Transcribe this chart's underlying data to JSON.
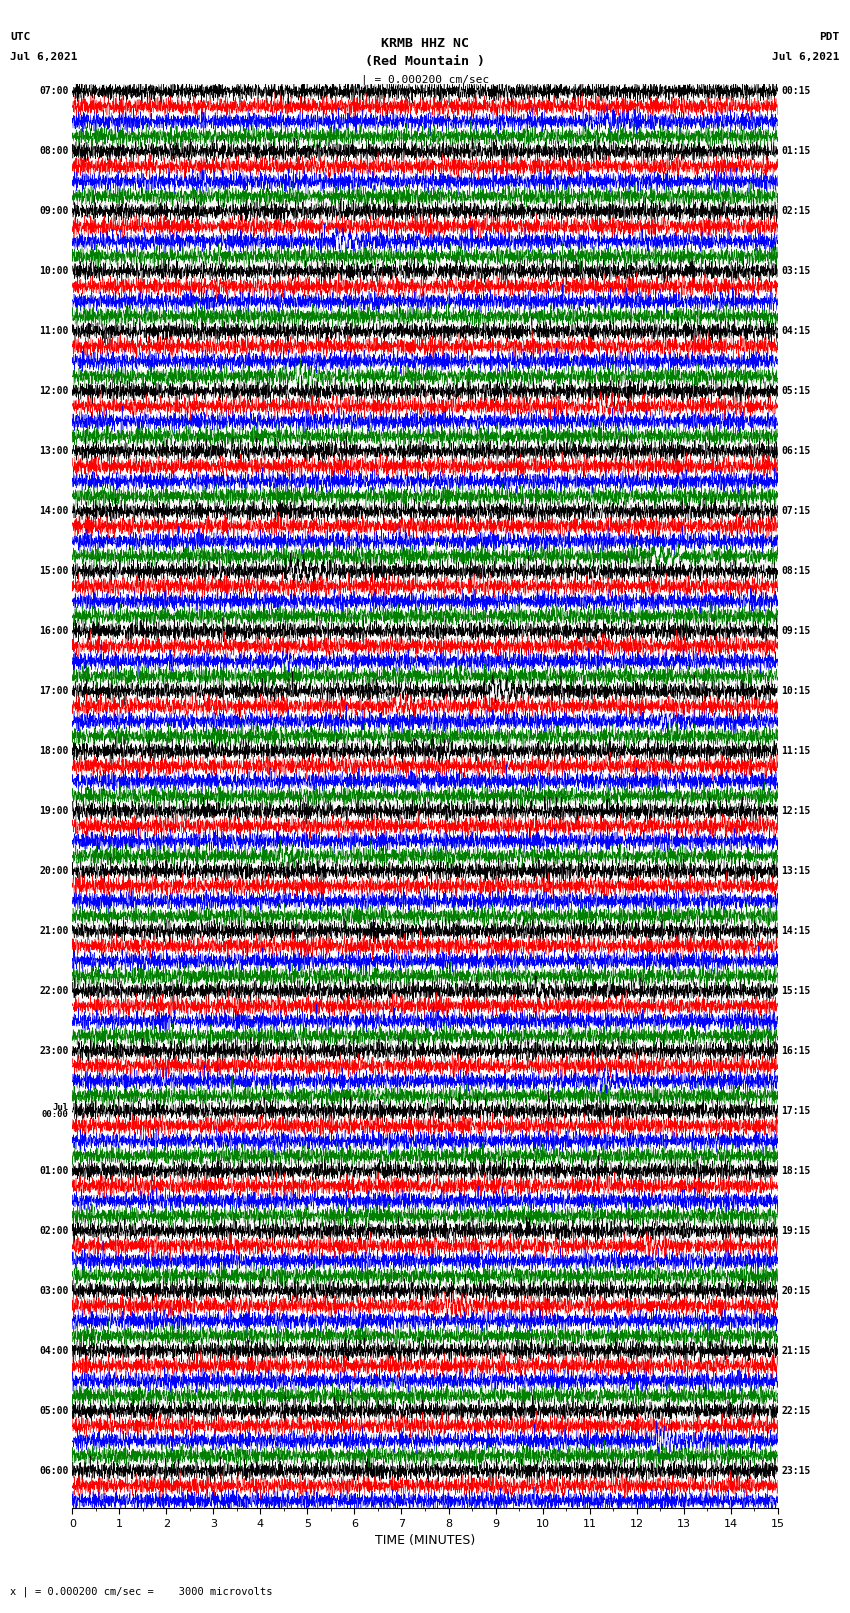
{
  "title_line1": "KRMB HHZ NC",
  "title_line2": "(Red Mountain )",
  "scale_bar": "| = 0.000200 cm/sec",
  "left_label_line1": "UTC",
  "left_label_line2": "Jul 6,2021",
  "right_label_line1": "PDT",
  "right_label_line2": "Jul 6,2021",
  "bottom_label": "TIME (MINUTES)",
  "bottom_note": "x | = 0.000200 cm/sec =    3000 microvolts",
  "colors": [
    "black",
    "red",
    "blue",
    "green"
  ],
  "left_times": [
    "07:00",
    "",
    "",
    "",
    "08:00",
    "",
    "",
    "",
    "09:00",
    "",
    "",
    "",
    "10:00",
    "",
    "",
    "",
    "11:00",
    "",
    "",
    "",
    "12:00",
    "",
    "",
    "",
    "13:00",
    "",
    "",
    "",
    "14:00",
    "",
    "",
    "",
    "15:00",
    "",
    "",
    "",
    "16:00",
    "",
    "",
    "",
    "17:00",
    "",
    "",
    "",
    "18:00",
    "",
    "",
    "",
    "19:00",
    "",
    "",
    "",
    "20:00",
    "",
    "",
    "",
    "21:00",
    "",
    "",
    "",
    "22:00",
    "",
    "",
    "",
    "23:00",
    "",
    "",
    "",
    "Jul",
    "",
    "",
    "",
    "01:00",
    "",
    "",
    "",
    "02:00",
    "",
    "",
    "",
    "03:00",
    "",
    "",
    "",
    "04:00",
    "",
    "",
    "",
    "05:00",
    "",
    "",
    "",
    "06:00",
    "",
    ""
  ],
  "right_times": [
    "00:15",
    "",
    "",
    "",
    "01:15",
    "",
    "",
    "",
    "02:15",
    "",
    "",
    "",
    "03:15",
    "",
    "",
    "",
    "04:15",
    "",
    "",
    "",
    "05:15",
    "",
    "",
    "",
    "06:15",
    "",
    "",
    "",
    "07:15",
    "",
    "",
    "",
    "08:15",
    "",
    "",
    "",
    "09:15",
    "",
    "",
    "",
    "10:15",
    "",
    "",
    "",
    "11:15",
    "",
    "",
    "",
    "12:15",
    "",
    "",
    "",
    "13:15",
    "",
    "",
    "",
    "14:15",
    "",
    "",
    "",
    "15:15",
    "",
    "",
    "",
    "16:15",
    "",
    "",
    "",
    "17:15",
    "",
    "",
    "",
    "18:15",
    "",
    "",
    "",
    "19:15",
    "",
    "",
    "",
    "20:15",
    "",
    "",
    "",
    "21:15",
    "",
    "",
    "",
    "22:15",
    "",
    "",
    "",
    "23:15",
    "",
    ""
  ],
  "midnight_row": 68,
  "n_rows": 95,
  "n_cols": 3600,
  "x_ticks": [
    0,
    1,
    2,
    3,
    4,
    5,
    6,
    7,
    8,
    9,
    10,
    11,
    12,
    13,
    14,
    15
  ],
  "x_lim": [
    0,
    15
  ],
  "fig_width": 8.5,
  "fig_height": 16.13
}
